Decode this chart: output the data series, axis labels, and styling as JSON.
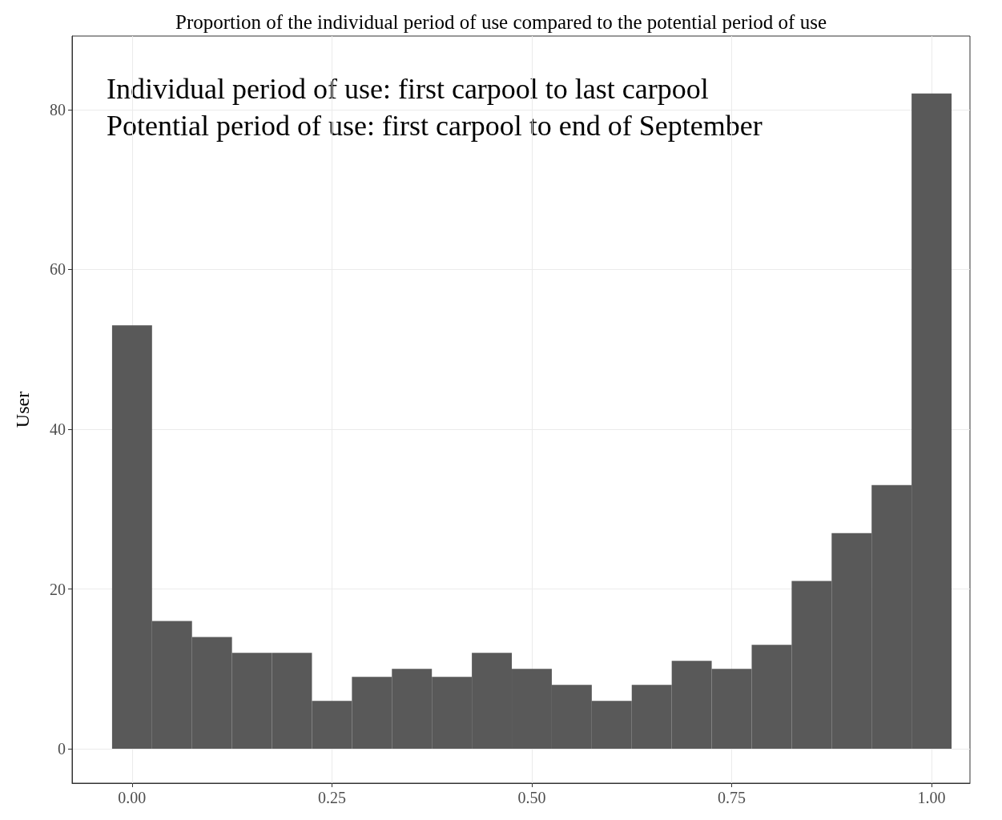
{
  "chart_data": {
    "type": "histogram",
    "title": "Proportion of the individual period of use compared to the potential period of use",
    "ylabel": "User",
    "annotations": [
      "Individual period of use: first carpool to last carpool",
      "Potential period of use: first carpool to end of September"
    ],
    "bins": [
      -0.025,
      0.025,
      0.075,
      0.125,
      0.175,
      0.225,
      0.275,
      0.325,
      0.375,
      0.425,
      0.475,
      0.525,
      0.575,
      0.625,
      0.675,
      0.725,
      0.775,
      0.825,
      0.875,
      0.925,
      0.975,
      1.025
    ],
    "values": [
      53,
      16,
      14,
      12,
      12,
      6,
      9,
      10,
      9,
      12,
      10,
      8,
      6,
      8,
      11,
      10,
      13,
      21,
      27,
      33,
      82
    ],
    "color": "#595959",
    "xlim": [
      -0.075,
      1.048
    ],
    "ylim": [
      -4.3,
      89.2
    ],
    "xticks": [
      {
        "value": 0,
        "label": "0.00"
      },
      {
        "value": 0.25,
        "label": "0.25"
      },
      {
        "value": 0.5,
        "label": "0.50"
      },
      {
        "value": 0.75,
        "label": "0.75"
      },
      {
        "value": 1,
        "label": "1.00"
      }
    ],
    "yticks": [
      0,
      20,
      40,
      60,
      80
    ],
    "grid": true
  }
}
